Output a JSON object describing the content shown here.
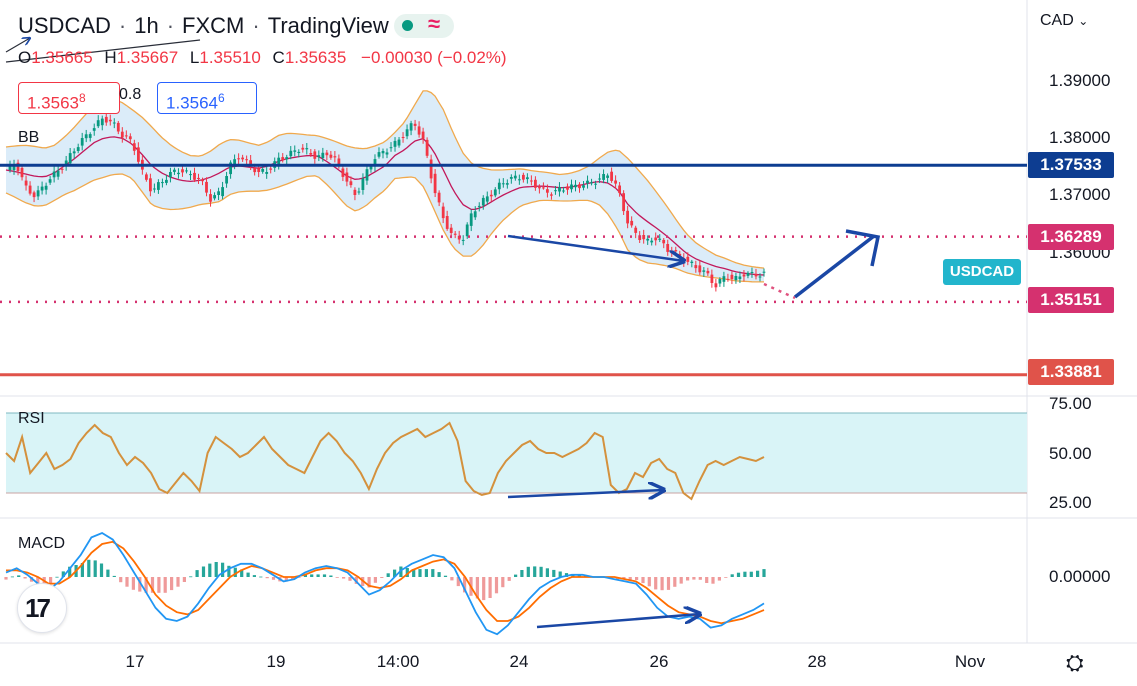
{
  "header": {
    "symbol": "USDCAD",
    "interval": "1h",
    "broker": "FXCM",
    "platform": "TradingView",
    "status_icon": "market-open-dot-icon",
    "wave_icon": "≈"
  },
  "ohlc": {
    "o_key": "O",
    "o": "1.35665",
    "h_key": "H",
    "h": "1.35667",
    "l_key": "L",
    "l": "1.35510",
    "c_key": "C",
    "c": "1.35635",
    "change": "−0.00030 (−0.02%)"
  },
  "quote": {
    "sell_main": "1.3563",
    "sell_sup": "8",
    "spread": "0.8",
    "buy_main": "1.3564",
    "buy_sup": "6"
  },
  "currency": "CAD",
  "currency_chevron": "⌄",
  "indicators": {
    "bb": "BB",
    "rsi": "RSI",
    "macd": "MACD"
  },
  "logo_text": "17",
  "symbol_tag": "USDCAD",
  "settings_icon": "⛭",
  "colors": {
    "up": "#089981",
    "down": "#f23645",
    "bb_band": "#f0a94d",
    "bb_fill": "#cfe6f7",
    "bb_basis": "#c2185b",
    "rsi_line": "#d4913d",
    "rsi_band": "#d9f4f7",
    "macd_line": "#2196f3",
    "signal_line": "#ff6d00",
    "annotation": "#1a47a5",
    "level_blue": "#0d3d91",
    "level_red": "#e0534a",
    "level_pink": "#d5316f"
  },
  "price_levels": [
    {
      "value": 1.37533,
      "label": "1.37533",
      "style": "solid",
      "color": "#0d3d91"
    },
    {
      "value": 1.36289,
      "label": "1.36289",
      "style": "dotted",
      "color": "#d5316f"
    },
    {
      "value": 1.35151,
      "label": "1.35151",
      "style": "dotted",
      "color": "#d5316f"
    },
    {
      "value": 1.33881,
      "label": "1.33881",
      "style": "solid",
      "color": "#e0534a"
    }
  ],
  "chart_data": [
    {
      "type": "candlestick",
      "title": "USDCAD · 1h · FXCM",
      "price_axis_ticks": [
        "1.39000",
        "1.38000",
        "1.37000",
        "1.36000"
      ],
      "ylim": [
        1.334,
        1.3945
      ],
      "x_tick_labels": [
        "17",
        "19",
        "14:00",
        "24",
        "26",
        "28",
        "Nov"
      ],
      "close_path": [
        1.3742,
        1.3758,
        1.3715,
        1.3699,
        1.372,
        1.3738,
        1.3755,
        1.378,
        1.38,
        1.3818,
        1.3836,
        1.3826,
        1.3805,
        1.3793,
        1.3742,
        1.3708,
        1.3724,
        1.374,
        1.3745,
        1.3736,
        1.3728,
        1.3694,
        1.3705,
        1.3752,
        1.377,
        1.3755,
        1.374,
        1.3745,
        1.3763,
        1.377,
        1.3782,
        1.3778,
        1.3766,
        1.3775,
        1.376,
        1.3727,
        1.37,
        1.3738,
        1.3768,
        1.3778,
        1.379,
        1.3809,
        1.3828,
        1.3793,
        1.3715,
        1.366,
        1.3628,
        1.3625,
        1.3672,
        1.369,
        1.3705,
        1.3722,
        1.373,
        1.3733,
        1.3725,
        1.3712,
        1.3704,
        1.3711,
        1.3715,
        1.3718,
        1.3722,
        1.3728,
        1.3739,
        1.371,
        1.3652,
        1.363,
        1.362,
        1.3628,
        1.3607,
        1.3598,
        1.3587,
        1.3575,
        1.3566,
        1.3543,
        1.356,
        1.3554,
        1.3565,
        1.3562,
        1.3564
      ],
      "bb_basis": [
        1.3745,
        1.3742,
        1.3738,
        1.3734,
        1.3733,
        1.374,
        1.3752,
        1.3764,
        1.3778,
        1.3792,
        1.38,
        1.3803,
        1.38,
        1.379,
        1.3772,
        1.3752,
        1.374,
        1.3732,
        1.3727,
        1.3725,
        1.3727,
        1.3732,
        1.374,
        1.375,
        1.3752,
        1.375,
        1.3748,
        1.3752,
        1.376,
        1.3765,
        1.3768,
        1.377,
        1.377,
        1.376,
        1.3748,
        1.3735,
        1.3728,
        1.3732,
        1.3742,
        1.3752,
        1.377,
        1.378,
        1.3795,
        1.38,
        1.3778,
        1.3745,
        1.371,
        1.3685,
        1.3675,
        1.368,
        1.369,
        1.37,
        1.3708,
        1.3715,
        1.3716,
        1.3717,
        1.3716,
        1.3714,
        1.3715,
        1.3718,
        1.3722,
        1.3725,
        1.3722,
        1.371,
        1.3685,
        1.3668,
        1.3655,
        1.3643,
        1.363,
        1.3615,
        1.36,
        1.359,
        1.3583,
        1.3577,
        1.3573,
        1.3568,
        1.3565,
        1.3563,
        1.3562
      ],
      "bb_width": [
        0.004,
        0.0045,
        0.005,
        0.0052,
        0.005,
        0.0048,
        0.005,
        0.0055,
        0.006,
        0.0065,
        0.0068,
        0.0066,
        0.0062,
        0.006,
        0.0065,
        0.0068,
        0.0062,
        0.0056,
        0.005,
        0.0045,
        0.0042,
        0.0045,
        0.005,
        0.0048,
        0.0045,
        0.0042,
        0.004,
        0.0042,
        0.0045,
        0.0044,
        0.004,
        0.0036,
        0.0035,
        0.004,
        0.0046,
        0.0052,
        0.0055,
        0.005,
        0.0045,
        0.0042,
        0.004,
        0.0048,
        0.0062,
        0.0085,
        0.01,
        0.0105,
        0.01,
        0.009,
        0.008,
        0.0068,
        0.0055,
        0.0045,
        0.0038,
        0.0032,
        0.0028,
        0.0025,
        0.0024,
        0.0023,
        0.0024,
        0.0026,
        0.003,
        0.004,
        0.0055,
        0.007,
        0.008,
        0.0078,
        0.0072,
        0.0062,
        0.0052,
        0.0042,
        0.0034,
        0.0028,
        0.0024,
        0.002,
        0.0018,
        0.0016,
        0.0014,
        0.0013,
        0.0012
      ]
    },
    {
      "type": "line",
      "title": "RSI",
      "y_ticks": [
        "75.00",
        "50.00",
        "25.00"
      ],
      "ylim": [
        20,
        80
      ],
      "band": [
        30,
        70
      ],
      "values": [
        50,
        46,
        58,
        40,
        45,
        50,
        42,
        44,
        47,
        55,
        60,
        64,
        60,
        58,
        50,
        44,
        48,
        45,
        40,
        32,
        30,
        35,
        40,
        36,
        31,
        50,
        58,
        55,
        52,
        48,
        50,
        54,
        58,
        52,
        48,
        44,
        42,
        40,
        48,
        56,
        60,
        56,
        50,
        46,
        40,
        32,
        42,
        50,
        55,
        58,
        60,
        62,
        58,
        60,
        62,
        65,
        56,
        36,
        31,
        29,
        30,
        40,
        46,
        50,
        54,
        56,
        52,
        50,
        50,
        48,
        50,
        52,
        55,
        60,
        58,
        34,
        30,
        32,
        40,
        38,
        45,
        47,
        42,
        40,
        30,
        27,
        36,
        44,
        46,
        44,
        46,
        48,
        47,
        46,
        48
      ]
    },
    {
      "type": "line",
      "title": "MACD",
      "y_ticks": [
        "0.00000"
      ],
      "ylim": [
        -0.0028,
        0.0025
      ],
      "series": [
        {
          "values": [
            0.0002,
            0.0004,
            0.0001,
            -0.0003,
            -0.0006,
            -0.0002,
            0.0004,
            0.001,
            0.0018,
            0.002,
            0.0017,
            0.001,
            0.0002,
            -0.0006,
            -0.0014,
            -0.0019,
            -0.002,
            -0.0018,
            -0.0012,
            -0.0005,
            0.0001,
            0.0004,
            0.0006,
            0.0006,
            0.0004,
            0.0001,
            -0.0002,
            -0.0001,
            0.0002,
            0.0004,
            0.0005,
            0.0004,
            0.0002,
            -0.0003,
            -0.0008,
            -0.0006,
            -0.0002,
            0.0003,
            0.0006,
            0.0008,
            0.001,
            0.0009,
            0.0004,
            -0.0006,
            -0.0016,
            -0.0024,
            -0.0026,
            -0.0022,
            -0.0016,
            -0.001,
            -0.0005,
            -0.0002,
            0.0,
            0.0001,
            0.0001,
            0.0,
            0.0,
            -0.0001,
            -0.0002,
            -0.0003,
            -0.0008,
            -0.0014,
            -0.0018,
            -0.0019,
            -0.0018,
            -0.0019,
            -0.0023,
            -0.0022,
            -0.0019,
            -0.0017,
            -0.0015,
            -0.0012
          ]
        },
        {
          "values": [
            0.0003,
            0.0003,
            0.0002,
            0.0,
            -0.0003,
            -0.0003,
            0.0,
            0.0005,
            0.0011,
            0.0015,
            0.0016,
            0.0013,
            0.0007,
            0.0,
            -0.0008,
            -0.0013,
            -0.0016,
            -0.0017,
            -0.0015,
            -0.001,
            -0.0005,
            0.0,
            0.0003,
            0.0005,
            0.0004,
            0.0002,
            0.0,
            0.0,
            0.0001,
            0.0003,
            0.0004,
            0.0004,
            0.0003,
            0.0,
            -0.0004,
            -0.0005,
            -0.0004,
            -0.0001,
            0.0003,
            0.0005,
            0.0007,
            0.0008,
            0.0006,
            0.0,
            -0.0008,
            -0.0015,
            -0.002,
            -0.002,
            -0.0018,
            -0.0014,
            -0.0009,
            -0.0005,
            -0.0002,
            0.0,
            0.0,
            0.0,
            0.0,
            0.0,
            -0.0001,
            -0.0002,
            -0.0005,
            -0.0009,
            -0.0013,
            -0.0016,
            -0.0017,
            -0.0018,
            -0.002,
            -0.0021,
            -0.002,
            -0.0019,
            -0.0017,
            -0.0015
          ]
        }
      ]
    }
  ]
}
